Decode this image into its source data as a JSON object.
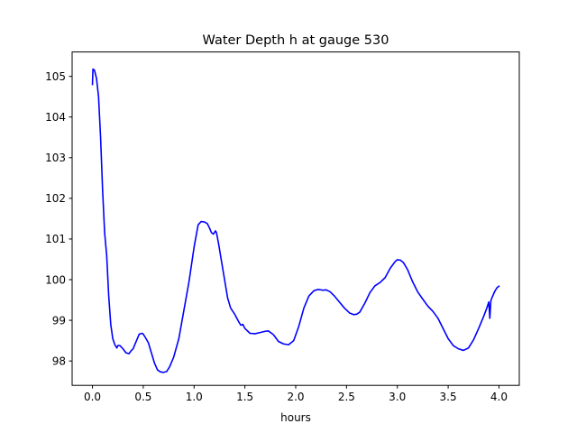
{
  "chart_data": {
    "type": "line",
    "title": "Water Depth h at gauge 530",
    "xlabel": "hours",
    "ylabel": "",
    "xlim": [
      -0.2,
      4.2
    ],
    "ylim": [
      97.4,
      105.6
    ],
    "xticks": [
      0.0,
      0.5,
      1.0,
      1.5,
      2.0,
      2.5,
      3.0,
      3.5,
      4.0
    ],
    "xtick_labels": [
      "0.0",
      "0.5",
      "1.0",
      "1.5",
      "2.0",
      "2.5",
      "3.0",
      "3.5",
      "4.0"
    ],
    "yticks": [
      98,
      99,
      100,
      101,
      102,
      103,
      104,
      105
    ],
    "ytick_labels": [
      "98",
      "99",
      "100",
      "101",
      "102",
      "103",
      "104",
      "105"
    ],
    "grid": false,
    "series": [
      {
        "color": "#0000ff",
        "x": [
          0.0,
          0.005,
          0.02,
          0.04,
          0.06,
          0.08,
          0.1,
          0.12,
          0.14,
          0.16,
          0.18,
          0.2,
          0.22,
          0.24,
          0.25,
          0.27,
          0.3,
          0.33,
          0.36,
          0.38,
          0.4,
          0.43,
          0.46,
          0.49,
          0.5,
          0.52,
          0.55,
          0.58,
          0.61,
          0.64,
          0.67,
          0.7,
          0.73,
          0.76,
          0.8,
          0.85,
          0.9,
          0.95,
          1.0,
          1.04,
          1.07,
          1.1,
          1.13,
          1.15,
          1.17,
          1.19,
          1.21,
          1.22,
          1.24,
          1.27,
          1.3,
          1.33,
          1.36,
          1.4,
          1.44,
          1.46,
          1.48,
          1.5,
          1.55,
          1.6,
          1.65,
          1.7,
          1.73,
          1.78,
          1.83,
          1.88,
          1.93,
          1.98,
          2.03,
          2.08,
          2.13,
          2.18,
          2.22,
          2.27,
          2.3,
          2.34,
          2.38,
          2.42,
          2.48,
          2.53,
          2.57,
          2.6,
          2.63,
          2.68,
          2.73,
          2.78,
          2.83,
          2.88,
          2.93,
          2.98,
          3.0,
          3.03,
          3.06,
          3.1,
          3.15,
          3.2,
          3.25,
          3.3,
          3.35,
          3.4,
          3.45,
          3.5,
          3.55,
          3.6,
          3.65,
          3.7,
          3.75,
          3.8,
          3.85,
          3.88,
          3.9,
          3.91,
          3.92,
          3.93,
          3.96,
          3.98,
          4.0
        ],
        "y": [
          104.8,
          105.18,
          105.15,
          104.95,
          104.5,
          103.5,
          102.2,
          101.15,
          100.6,
          99.6,
          98.9,
          98.55,
          98.4,
          98.32,
          98.38,
          98.38,
          98.3,
          98.2,
          98.18,
          98.25,
          98.3,
          98.48,
          98.66,
          98.68,
          98.66,
          98.58,
          98.45,
          98.2,
          97.95,
          97.78,
          97.73,
          97.72,
          97.74,
          97.86,
          98.1,
          98.55,
          99.25,
          99.95,
          100.8,
          101.35,
          101.43,
          101.42,
          101.38,
          101.28,
          101.16,
          101.12,
          101.2,
          101.16,
          100.9,
          100.45,
          100.0,
          99.55,
          99.3,
          99.15,
          98.96,
          98.88,
          98.9,
          98.8,
          98.68,
          98.67,
          98.7,
          98.73,
          98.74,
          98.65,
          98.48,
          98.42,
          98.4,
          98.5,
          98.85,
          99.3,
          99.6,
          99.73,
          99.76,
          99.74,
          99.75,
          99.7,
          99.6,
          99.48,
          99.3,
          99.18,
          99.14,
          99.15,
          99.2,
          99.42,
          99.68,
          99.85,
          99.93,
          100.05,
          100.28,
          100.45,
          100.49,
          100.48,
          100.42,
          100.25,
          99.95,
          99.7,
          99.52,
          99.35,
          99.22,
          99.05,
          98.8,
          98.55,
          98.38,
          98.3,
          98.26,
          98.32,
          98.52,
          98.8,
          99.1,
          99.3,
          99.45,
          99.05,
          99.48,
          99.55,
          99.72,
          99.8,
          99.84
        ]
      }
    ]
  }
}
